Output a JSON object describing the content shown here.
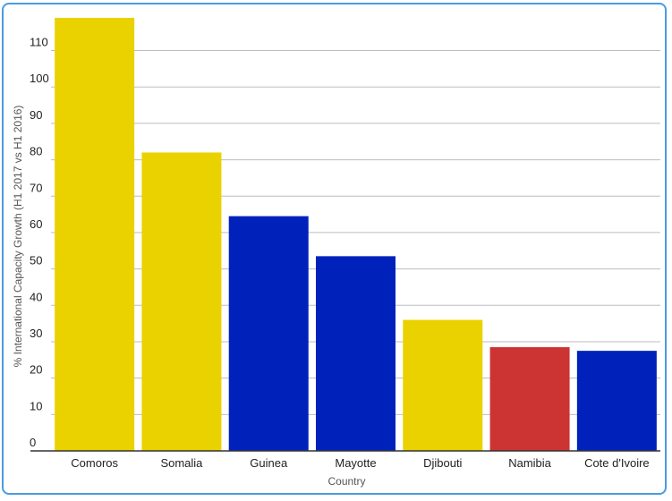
{
  "colors": {
    "yellow": "#ead200",
    "blue": "#0022bb",
    "red": "#cc3333",
    "grid": "#bdbdbd",
    "frame": "#4a9be0"
  },
  "chart_data": {
    "type": "bar",
    "xlabel": "Country",
    "ylabel": "% International Capacity Growth (H1 2017 vs H1 2016)",
    "ylim": [
      0,
      118
    ],
    "yticks": [
      0,
      10,
      20,
      30,
      40,
      50,
      60,
      70,
      80,
      90,
      100,
      110
    ],
    "grid": true,
    "categories": [
      "Comoros",
      "Somalia",
      "Guinea",
      "Mayotte",
      "Djibouti",
      "Namibia",
      "Cote d'Ivoire"
    ],
    "values": [
      119,
      82,
      64.5,
      53.5,
      36,
      28.5,
      27.5
    ],
    "bar_colors": [
      "yellow",
      "yellow",
      "blue",
      "blue",
      "yellow",
      "red",
      "blue"
    ]
  }
}
